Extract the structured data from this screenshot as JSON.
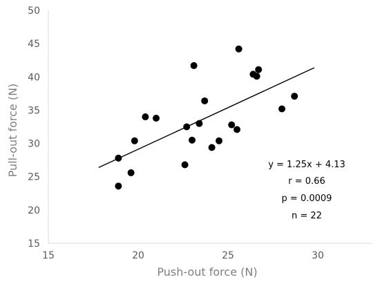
{
  "chart_data": {
    "type": "scatter",
    "title": "",
    "xlabel": "Push-out force (N)",
    "ylabel": "Pull-out force (N)",
    "xlim": [
      15,
      33
    ],
    "ylim": [
      15,
      50
    ],
    "xticks": [
      "15",
      "20",
      "25",
      "30"
    ],
    "yticks": [
      "15",
      "20",
      "25",
      "30",
      "35",
      "40",
      "45",
      "50"
    ],
    "grid": false,
    "series": [
      {
        "x": [
          18.9,
          18.9,
          19.6,
          19.8,
          20.4,
          21.0,
          22.6,
          22.7,
          23.0,
          23.1,
          23.4,
          23.7,
          24.1,
          24.5,
          25.2,
          25.5,
          25.6,
          26.4,
          26.6,
          26.7,
          28.0,
          28.7
        ],
        "y": [
          23.6,
          27.8,
          25.6,
          30.4,
          34.0,
          33.8,
          26.8,
          32.5,
          30.5,
          41.7,
          33.0,
          36.4,
          29.4,
          30.4,
          32.8,
          32.1,
          44.2,
          40.4,
          40.1,
          41.1,
          35.2,
          37.1
        ]
      }
    ],
    "trendline": {
      "equation": "y = 1.25x + 4.13",
      "slope": 1.25,
      "intercept": 4.13,
      "x_range": [
        17.8,
        29.8
      ]
    },
    "annotations": [
      "y = 1.25x + 4.13",
      "r = 0.66",
      "p = 0.0009",
      "n = 22"
    ],
    "colors": {
      "points": "#000000",
      "axis": "#d9d9d9",
      "line": "#000000"
    }
  }
}
